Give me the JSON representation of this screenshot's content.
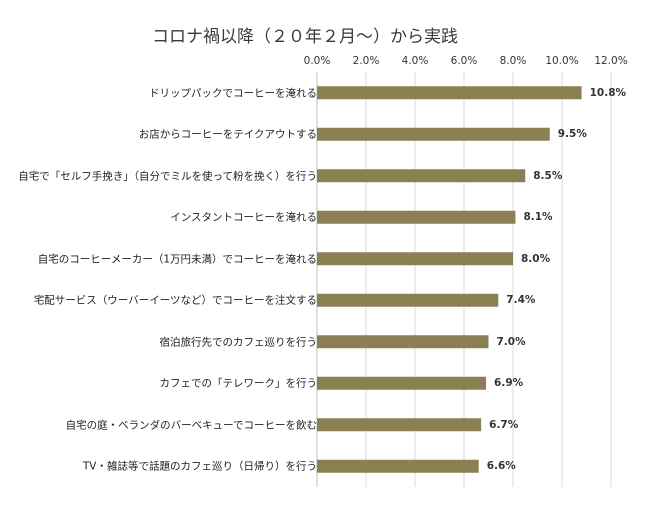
{
  "chart_data": {
    "type": "bar",
    "orientation": "horizontal",
    "title": "コロナ禍以降（２０年２月～）から実践",
    "xlabel": "",
    "ylabel": "",
    "xlim": [
      0,
      12
    ],
    "ticks": [
      "0.0%",
      "2.0%",
      "4.0%",
      "6.0%",
      "8.0%",
      "10.0%",
      "12.0%"
    ],
    "tick_values": [
      0,
      2,
      4,
      6,
      8,
      10,
      12
    ],
    "axis_position": "top",
    "grid": true,
    "legend": "none",
    "bar_color": "#8b8052",
    "categories": [
      "ドリップパックでコーヒーを淹れる",
      "お店からコーヒーをテイクアウトする",
      "自宅で「セルフ手挽き」（自分でミルを使って粉を挽く）を行う",
      "インスタントコーヒーを淹れる",
      "自宅のコーヒーメーカー（1万円未満）でコーヒーを淹れる",
      "宅配サービス（ウーバーイーツなど）でコーヒーを注文する",
      "宿泊旅行先でのカフェ巡りを行う",
      "カフェでの「テレワーク」を行う",
      "自宅の庭・ベランダのバーベキューでコーヒーを飲む",
      "TV・雑誌等で話題のカフェ巡り（日帰り）を行う"
    ],
    "values": [
      10.8,
      9.5,
      8.5,
      8.1,
      8.0,
      7.4,
      7.0,
      6.9,
      6.7,
      6.6
    ],
    "value_labels": [
      "10.8%",
      "9.5%",
      "8.5%",
      "8.1%",
      "8.0%",
      "7.4%",
      "7.0%",
      "6.9%",
      "6.7%",
      "6.6%"
    ]
  }
}
